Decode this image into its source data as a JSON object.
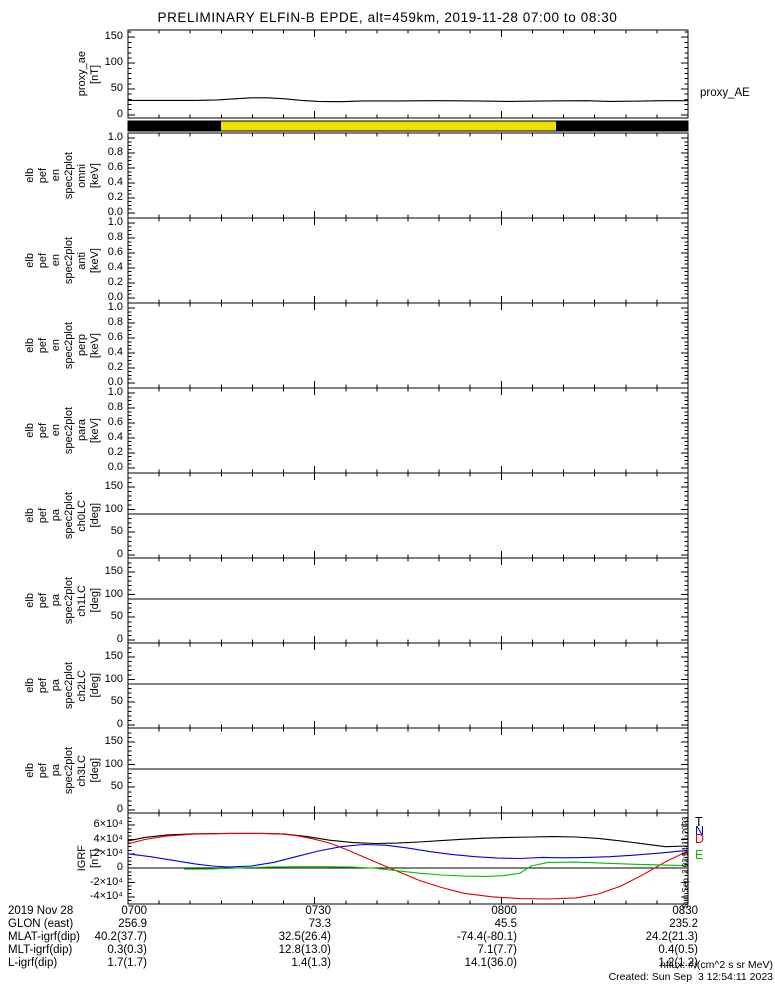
{
  "title": "PRELIMINARY ELFIN-B EPDE, alt=459km, 2019-11-28 07:00 to 08:30",
  "right_label": "proxy_AE",
  "side_timestamp": "Sun Sep  3 03:54:11 2023",
  "footer": {
    "nflux_units": "nflux: #/(cm^2 s sr MeV)",
    "created": "Created: Sun Sep  3 12:54:11 2023"
  },
  "legend": {
    "entries": [
      {
        "label": "T",
        "color": "#000000"
      },
      {
        "label": "N",
        "color": "#0000e0"
      },
      {
        "label": "D",
        "color": "#e00000"
      },
      {
        "label": "E",
        "color": "#00c000"
      }
    ]
  },
  "colors": {
    "science_zone_yellow": "#f0e000",
    "frame_black": "#000000",
    "trace_red": "#e00000",
    "trace_blue": "#0000e0",
    "trace_green": "#00c000"
  },
  "flag_bar": {
    "segments": [
      {
        "color": "#000000",
        "from": 0.0,
        "to": 0.166
      },
      {
        "color": "#f0e000",
        "from": 0.166,
        "to": 0.764
      },
      {
        "color": "#000000",
        "from": 0.764,
        "to": 1.0
      }
    ]
  },
  "table": {
    "rows": [
      {
        "label": "2019 Nov 28",
        "values": [
          "0700",
          "0730",
          "0800",
          "0830"
        ]
      },
      {
        "label": "GLON (east)",
        "values": [
          "256.9",
          "73.3",
          "45.5",
          "235.2"
        ]
      },
      {
        "label": "MLAT-igrf(dip)",
        "values": [
          "40.2(37.7)",
          "32.5(26.4)",
          "-74.4(-80.1)",
          "24.2(21.3)"
        ]
      },
      {
        "label": "MLT-igrf(dip)",
        "values": [
          "0.3(0.3)",
          "12.8(13.0)",
          "7.1(7.7)",
          "0.4(0.5)"
        ]
      },
      {
        "label": "L-igrf(dip)",
        "values": [
          "1.7(1.7)",
          "1.4(1.3)",
          "14.1(36.0)",
          "1.2(1.2)"
        ]
      }
    ]
  },
  "chart_data": {
    "type": "line",
    "time_range": [
      "07:00",
      "08:30"
    ],
    "x_axis": {
      "tick_labels": [
        "0700",
        "0730",
        "0800",
        "0830"
      ],
      "n_minor_intervals": 18,
      "major_every": 6
    },
    "panels": [
      {
        "id": "proxy-ae",
        "label_words": [
          "proxy_ae",
          "[nT]"
        ],
        "ymin": -6,
        "ymax": 164,
        "yminor": 10,
        "yticks": [
          {
            "v": 0,
            "label": "0"
          },
          {
            "v": 50,
            "label": "50"
          },
          {
            "v": 100,
            "label": "100"
          },
          {
            "v": 150,
            "label": "150"
          }
        ],
        "series": [
          {
            "name": "proxy_AE",
            "color": "#000000",
            "x": [
              0,
              0.12,
              0.16,
              0.19,
              0.22,
              0.25,
              0.28,
              0.31,
              0.34,
              0.38,
              0.42,
              0.48,
              0.55,
              0.62,
              0.68,
              0.75,
              0.82,
              0.86,
              0.9,
              0.95,
              1.0
            ],
            "y": [
              28,
              28,
              29,
              31,
              33,
              33,
              31,
              28,
              26,
              25.5,
              27,
              27,
              27.5,
              27,
              26,
              27,
              27.5,
              26,
              26.5,
              27.5,
              27.5
            ]
          }
        ]
      },
      {
        "id": "en-omni",
        "label_words": [
          "elb",
          "pef",
          "en",
          "spec2plot",
          "omni",
          "[keV]"
        ],
        "ymin": -0.07,
        "ymax": 1.07,
        "yminor": 0.05,
        "yticks": [
          {
            "v": 0,
            "label": "0.0"
          },
          {
            "v": 0.2,
            "label": "0.2"
          },
          {
            "v": 0.4,
            "label": "0.4"
          },
          {
            "v": 0.6,
            "label": "0.6"
          },
          {
            "v": 0.8,
            "label": "0.8"
          },
          {
            "v": 1.0,
            "label": "1.0"
          }
        ],
        "series": []
      },
      {
        "id": "en-anti",
        "label_words": [
          "elb",
          "pef",
          "en",
          "spec2plot",
          "anti",
          "[keV]"
        ],
        "ymin": -0.07,
        "ymax": 1.07,
        "yminor": 0.05,
        "yticks": [
          {
            "v": 0,
            "label": "0.0"
          },
          {
            "v": 0.2,
            "label": "0.2"
          },
          {
            "v": 0.4,
            "label": "0.4"
          },
          {
            "v": 0.6,
            "label": "0.6"
          },
          {
            "v": 0.8,
            "label": "0.8"
          },
          {
            "v": 1.0,
            "label": "1.0"
          }
        ],
        "series": []
      },
      {
        "id": "en-perp",
        "label_words": [
          "elb",
          "pef",
          "en",
          "spec2plot",
          "perp",
          "[keV]"
        ],
        "ymin": -0.07,
        "ymax": 1.07,
        "yminor": 0.05,
        "yticks": [
          {
            "v": 0,
            "label": "0.0"
          },
          {
            "v": 0.2,
            "label": "0.2"
          },
          {
            "v": 0.4,
            "label": "0.4"
          },
          {
            "v": 0.6,
            "label": "0.6"
          },
          {
            "v": 0.8,
            "label": "0.8"
          },
          {
            "v": 1.0,
            "label": "1.0"
          }
        ],
        "series": []
      },
      {
        "id": "en-para",
        "label_words": [
          "elb",
          "pef",
          "en",
          "spec2plot",
          "para",
          "[keV]"
        ],
        "ymin": -0.07,
        "ymax": 1.07,
        "yminor": 0.05,
        "yticks": [
          {
            "v": 0,
            "label": "0.0"
          },
          {
            "v": 0.2,
            "label": "0.2"
          },
          {
            "v": 0.4,
            "label": "0.4"
          },
          {
            "v": 0.6,
            "label": "0.6"
          },
          {
            "v": 0.8,
            "label": "0.8"
          },
          {
            "v": 1.0,
            "label": "1.0"
          }
        ],
        "series": []
      },
      {
        "id": "pa-ch0lc",
        "label_words": [
          "elb",
          "pef",
          "pa",
          "spec2plot",
          "ch0LC",
          "[deg]"
        ],
        "ymin": -7,
        "ymax": 181,
        "yminor": 10,
        "refline": 90,
        "yticks": [
          {
            "v": 0,
            "label": "0"
          },
          {
            "v": 50,
            "label": "50"
          },
          {
            "v": 100,
            "label": "100"
          },
          {
            "v": 150,
            "label": "150"
          }
        ],
        "series": []
      },
      {
        "id": "pa-ch1lc",
        "label_words": [
          "elb",
          "pef",
          "pa",
          "spec2plot",
          "ch1LC",
          "[deg]"
        ],
        "ymin": -7,
        "ymax": 181,
        "yminor": 10,
        "refline": 90,
        "yticks": [
          {
            "v": 0,
            "label": "0"
          },
          {
            "v": 50,
            "label": "50"
          },
          {
            "v": 100,
            "label": "100"
          },
          {
            "v": 150,
            "label": "150"
          }
        ],
        "series": []
      },
      {
        "id": "pa-ch2lc",
        "label_words": [
          "elb",
          "pef",
          "pa",
          "spec2plot",
          "ch2LC",
          "[deg]"
        ],
        "ymin": -7,
        "ymax": 181,
        "yminor": 10,
        "refline": 90,
        "yticks": [
          {
            "v": 0,
            "label": "0"
          },
          {
            "v": 50,
            "label": "50"
          },
          {
            "v": 100,
            "label": "100"
          },
          {
            "v": 150,
            "label": "150"
          }
        ],
        "series": []
      },
      {
        "id": "pa-ch3lc",
        "label_words": [
          "elb",
          "pef",
          "pa",
          "spec2plot",
          "ch3LC",
          "[deg]"
        ],
        "ymin": -7,
        "ymax": 181,
        "yminor": 10,
        "refline": 90,
        "yticks": [
          {
            "v": 0,
            "label": "0"
          },
          {
            "v": 50,
            "label": "50"
          },
          {
            "v": 100,
            "label": "100"
          },
          {
            "v": 150,
            "label": "150"
          }
        ],
        "series": []
      },
      {
        "id": "igrf",
        "label_words": [
          "IGRF",
          "[nT]"
        ],
        "ymin": -50000,
        "ymax": 77000,
        "yminor": 5000,
        "refline": 0,
        "yticks": [
          {
            "v": 60000,
            "label": "6×10⁴"
          },
          {
            "v": 40000,
            "label": "4×10⁴"
          },
          {
            "v": 20000,
            "label": "2×10⁴"
          },
          {
            "v": 0,
            "label": "0"
          },
          {
            "v": -20000,
            "label": "-2×10⁴"
          },
          {
            "v": -40000,
            "label": "-4×10⁴"
          }
        ],
        "series": [
          {
            "name": "T",
            "color": "#000000",
            "x": [
              0,
              0.03,
              0.07,
              0.12,
              0.18,
              0.24,
              0.28,
              0.32,
              0.36,
              0.4,
              0.44,
              0.48,
              0.52,
              0.56,
              0.6,
              0.64,
              0.68,
              0.72,
              0.76,
              0.8,
              0.84,
              0.88,
              0.92,
              0.96,
              1.0
            ],
            "y": [
              38000,
              43000,
              46500,
              48000,
              48500,
              48500,
              47500,
              44000,
              39000,
              36000,
              34500,
              35000,
              36500,
              38500,
              40500,
              42000,
              43000,
              43500,
              44000,
              43500,
              41500,
              38000,
              34000,
              30000,
              31000
            ]
          },
          {
            "name": "N",
            "color": "#0000e0",
            "x": [
              0,
              0.04,
              0.08,
              0.12,
              0.15,
              0.18,
              0.22,
              0.26,
              0.3,
              0.34,
              0.38,
              0.42,
              0.46,
              0.5,
              0.54,
              0.58,
              0.62,
              0.66,
              0.7,
              0.74,
              0.78,
              0.82,
              0.86,
              0.9,
              0.95,
              1.0
            ],
            "y": [
              20000,
              16000,
              11000,
              6000,
              3000,
              1500,
              3000,
              8000,
              16000,
              24000,
              30000,
              33000,
              32000,
              28000,
              23000,
              19000,
              16000,
              14000,
              13500,
              15000,
              14500,
              15000,
              16000,
              18000,
              21000,
              25000
            ]
          },
          {
            "name": "D",
            "color": "#e00000",
            "x": [
              0,
              0.03,
              0.07,
              0.12,
              0.18,
              0.24,
              0.27,
              0.3,
              0.33,
              0.36,
              0.39,
              0.42,
              0.45,
              0.48,
              0.52,
              0.56,
              0.6,
              0.65,
              0.7,
              0.75,
              0.8,
              0.84,
              0.88,
              0.92,
              0.96,
              1.0
            ],
            "y": [
              34000,
              40000,
              45000,
              47500,
              48500,
              48500,
              48000,
              45500,
              41000,
              35000,
              26000,
              16000,
              6000,
              -4000,
              -17000,
              -27000,
              -35000,
              -40000,
              -42500,
              -43000,
              -41500,
              -36000,
              -25000,
              -9000,
              9000,
              24000
            ]
          },
          {
            "name": "E",
            "color": "#00c000",
            "x": [
              0.1,
              0.15,
              0.2,
              0.25,
              0.3,
              0.35,
              0.4,
              0.44,
              0.48,
              0.52,
              0.56,
              0.6,
              0.64,
              0.67,
              0.7,
              0.72,
              0.75,
              0.8,
              0.85,
              0.9,
              0.95,
              1.0
            ],
            "y": [
              -1500,
              -1000,
              500,
              1500,
              2000,
              2000,
              1500,
              0,
              -3500,
              -7000,
              -9500,
              -11000,
              -11500,
              -10500,
              -7000,
              3000,
              8000,
              8500,
              7000,
              5500,
              4500,
              3500
            ]
          }
        ]
      }
    ]
  }
}
